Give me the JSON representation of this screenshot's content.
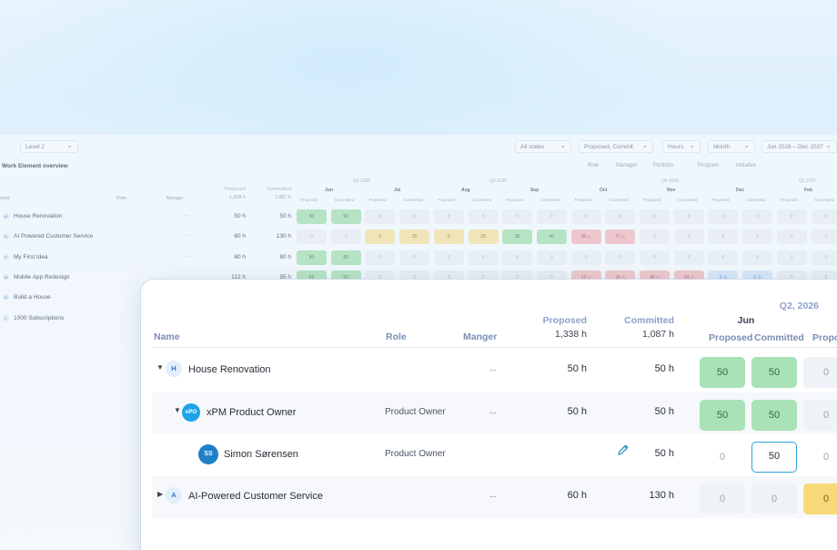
{
  "background": {
    "level_select": "Level 2",
    "title": "Work Element overview",
    "filters_top": [
      "All states",
      "Proposed, Commit",
      "Hours",
      "Month",
      "Jun 2026 – Dec 2027"
    ],
    "filters_second": [
      "Role",
      "Manager",
      "Portfolio",
      "Program",
      "Initiative"
    ],
    "columns": {
      "name": "ame",
      "role": "Role",
      "manager": "Manger",
      "proposed": "Proposed",
      "committed": "Committed",
      "proposed_total": "1,338 h",
      "committed_total": "1,087 h"
    },
    "quarters": [
      "Q2 2026",
      "Q3 2026",
      "Q4 2026",
      "Q1 2027"
    ],
    "months": [
      "Jun",
      "Jul",
      "Aug",
      "Sep",
      "Oct",
      "Nov",
      "Dec",
      "Feb"
    ],
    "sub_proposed": "Proposed",
    "sub_committed": "Committed",
    "rows": [
      {
        "badge": "H",
        "name": "House Renovation",
        "manager": "...",
        "proposed": "50 h",
        "committed": "50 h",
        "cells": [
          [
            "50",
            "g"
          ],
          [
            "50",
            "g"
          ],
          [
            "0",
            ""
          ],
          [
            "0",
            ""
          ],
          [
            "0",
            ""
          ],
          [
            "0",
            ""
          ],
          [
            "0",
            ""
          ],
          [
            "0",
            ""
          ],
          [
            "0",
            ""
          ],
          [
            "0",
            ""
          ],
          [
            "0",
            ""
          ],
          [
            "0",
            ""
          ],
          [
            "0",
            ""
          ],
          [
            "0",
            ""
          ],
          [
            "0",
            ""
          ],
          [
            "0",
            ""
          ]
        ]
      },
      {
        "badge": "A",
        "name": "AI Powered Customer Service",
        "manager": "...",
        "proposed": "60 h",
        "committed": "130 h",
        "cells": [
          [
            "0",
            ""
          ],
          [
            "0",
            ""
          ],
          [
            "0",
            "y"
          ],
          [
            "25",
            "y"
          ],
          [
            "0",
            "y"
          ],
          [
            "25",
            "y"
          ],
          [
            "30",
            "g"
          ],
          [
            "40",
            "g"
          ],
          [
            "30 △",
            "r"
          ],
          [
            "27 △",
            "r"
          ],
          [
            "0",
            ""
          ],
          [
            "0",
            ""
          ],
          [
            "0",
            ""
          ],
          [
            "0",
            ""
          ],
          [
            "0",
            ""
          ],
          [
            "0",
            ""
          ]
        ]
      },
      {
        "badge": "Y",
        "name": "My First Idea",
        "manager": "...",
        "proposed": "80 h",
        "committed": "80 h",
        "cells": [
          [
            "80",
            "g"
          ],
          [
            "80",
            "g"
          ],
          [
            "0",
            ""
          ],
          [
            "0",
            ""
          ],
          [
            "0",
            ""
          ],
          [
            "0",
            ""
          ],
          [
            "0",
            ""
          ],
          [
            "0",
            ""
          ],
          [
            "0",
            ""
          ],
          [
            "0",
            ""
          ],
          [
            "0",
            ""
          ],
          [
            "0",
            ""
          ],
          [
            "0",
            ""
          ],
          [
            "0",
            ""
          ],
          [
            "0",
            ""
          ],
          [
            "0",
            ""
          ]
        ]
      },
      {
        "badge": "M",
        "name": "Mobile App Redesign",
        "manager": "...",
        "proposed": "112 h",
        "committed": "95 h",
        "cells": [
          [
            "52",
            "g"
          ],
          [
            "52",
            "g"
          ],
          [
            "0",
            ""
          ],
          [
            "0",
            ""
          ],
          [
            "0",
            ""
          ],
          [
            "0",
            ""
          ],
          [
            "0",
            ""
          ],
          [
            "0",
            ""
          ],
          [
            "13 △",
            "r"
          ],
          [
            "16 △",
            "r"
          ],
          [
            "48 △",
            "r"
          ],
          [
            "24 △",
            "r"
          ],
          [
            "6 ⊙",
            "b"
          ],
          [
            "0 ⊙",
            "b"
          ],
          [
            "0",
            ""
          ],
          [
            "0",
            ""
          ]
        ]
      },
      {
        "badge": "B",
        "name": "Build a House",
        "manager": "",
        "proposed": "",
        "committed": "",
        "cells": []
      },
      {
        "badge": "1",
        "name": "1000 Subscriptions",
        "manager": "",
        "proposed": "",
        "committed": "",
        "cells": []
      }
    ]
  },
  "card": {
    "headers": {
      "name": "Name",
      "role": "Role",
      "manager": "Manger",
      "proposed": "Proposed",
      "committed": "Committed",
      "proposed_total": "1,338 h",
      "committed_total": "1,087 h",
      "quarter": "Q2, 2026",
      "month": "Jun",
      "sub_proposed": "Proposed",
      "sub_committed": "Committed",
      "sub_proposed_cut": "Propo"
    },
    "rows": [
      {
        "name": "House Renovation",
        "badge": "H",
        "role": "",
        "manager": "...",
        "proposed": "50 h",
        "committed": "50 h",
        "jun_proposed": "50",
        "jun_committed": "50",
        "next": "0"
      },
      {
        "name": "xPM Product Owner",
        "badge": "xPO",
        "role": "Product Owner",
        "manager": "...",
        "proposed": "50 h",
        "committed": "50 h",
        "jun_proposed": "50",
        "jun_committed": "50",
        "next": "0"
      },
      {
        "name": "Simon Sørensen",
        "badge": "SS",
        "role": "Product Owner",
        "manager": "",
        "proposed": "",
        "committed": "50 h",
        "jun_proposed": "0",
        "jun_committed": "50",
        "next": "0"
      },
      {
        "name": "AI-Powered Customer Service",
        "badge": "A",
        "role": "",
        "manager": "...",
        "proposed": "60 h",
        "committed": "130 h",
        "jun_proposed": "0",
        "jun_committed": "0",
        "next": "0"
      }
    ]
  }
}
